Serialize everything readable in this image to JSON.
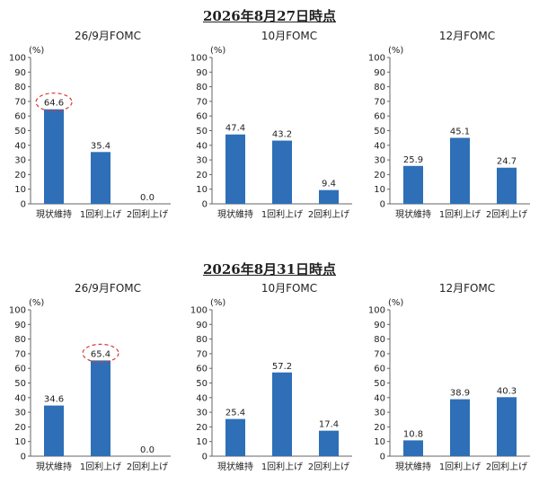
{
  "sections": [
    {
      "title": "2026年8月27日時点",
      "charts": [
        {
          "title": "26/9月FOMC",
          "unit": "(%)",
          "categories": [
            "現状維持",
            "1回利上げ",
            "2回利上げ"
          ],
          "values": [
            64.6,
            35.4,
            0.0
          ],
          "labels": [
            "64.6",
            "35.4",
            "0.0"
          ],
          "highlight_index": 0
        },
        {
          "title": "10月FOMC",
          "unit": "(%)",
          "categories": [
            "現状維持",
            "1回利上げ",
            "2回利上げ"
          ],
          "values": [
            47.4,
            43.2,
            9.4
          ],
          "labels": [
            "47.4",
            "43.2",
            "9.4"
          ],
          "highlight_index": null
        },
        {
          "title": "12月FOMC",
          "unit": "(%)",
          "categories": [
            "現状維持",
            "1回利上げ",
            "2回利上げ"
          ],
          "values": [
            25.9,
            45.1,
            24.7
          ],
          "labels": [
            "25.9",
            "45.1",
            "24.7"
          ],
          "highlight_index": null
        }
      ]
    },
    {
      "title": "2026年8月31日時点",
      "charts": [
        {
          "title": "26/9月FOMC",
          "unit": "(%)",
          "categories": [
            "現状維持",
            "1回利上げ",
            "2回利上げ"
          ],
          "values": [
            34.6,
            65.4,
            0.0
          ],
          "labels": [
            "34.6",
            "65.4",
            "0.0"
          ],
          "highlight_index": 1
        },
        {
          "title": "10月FOMC",
          "unit": "(%)",
          "categories": [
            "現状維持",
            "1回利上げ",
            "2回利上げ"
          ],
          "values": [
            25.4,
            57.2,
            17.4
          ],
          "labels": [
            "25.4",
            "57.2",
            "17.4"
          ],
          "highlight_index": null
        },
        {
          "title": "12月FOMC",
          "unit": "(%)",
          "categories": [
            "現状維持",
            "1回利上げ",
            "2回利上げ"
          ],
          "values": [
            10.8,
            38.9,
            40.3
          ],
          "labels": [
            "10.8",
            "38.9",
            "40.3"
          ],
          "highlight_index": null
        }
      ]
    }
  ],
  "chart_data": [
    {
      "type": "bar",
      "title": "26/9月FOMC",
      "ylabel": "(%)",
      "categories": [
        "現状維持",
        "1回利上げ",
        "2回利上げ"
      ],
      "values": [
        64.6,
        35.4,
        0.0
      ],
      "ylim": [
        0,
        100
      ],
      "ytick_step": 10
    },
    {
      "type": "bar",
      "title": "10月FOMC",
      "ylabel": "(%)",
      "categories": [
        "現状維持",
        "1回利上げ",
        "2回利上げ"
      ],
      "values": [
        47.4,
        43.2,
        9.4
      ],
      "ylim": [
        0,
        100
      ],
      "ytick_step": 10
    },
    {
      "type": "bar",
      "title": "12月FOMC",
      "ylabel": "(%)",
      "categories": [
        "現状維持",
        "1回利上げ",
        "2回利上げ"
      ],
      "values": [
        25.9,
        45.1,
        24.7
      ],
      "ylim": [
        0,
        100
      ],
      "ytick_step": 10
    },
    {
      "type": "bar",
      "title": "26/9月FOMC",
      "ylabel": "(%)",
      "categories": [
        "現状維持",
        "1回利上げ",
        "2回利上げ"
      ],
      "values": [
        34.6,
        65.4,
        0.0
      ],
      "ylim": [
        0,
        100
      ],
      "ytick_step": 10
    },
    {
      "type": "bar",
      "title": "10月FOMC",
      "ylabel": "(%)",
      "categories": [
        "現状維持",
        "1回利上げ",
        "2回利上げ"
      ],
      "values": [
        25.4,
        57.2,
        17.4
      ],
      "ylim": [
        0,
        100
      ],
      "ytick_step": 10
    },
    {
      "type": "bar",
      "title": "12月FOMC",
      "ylabel": "(%)",
      "categories": [
        "現状維持",
        "1回利上げ",
        "2回利上げ"
      ],
      "values": [
        10.8,
        38.9,
        40.3
      ],
      "ylim": [
        0,
        100
      ],
      "ytick_step": 10
    }
  ],
  "colors": {
    "bar": "#2e6fb8",
    "highlight": "#d83a3a"
  }
}
